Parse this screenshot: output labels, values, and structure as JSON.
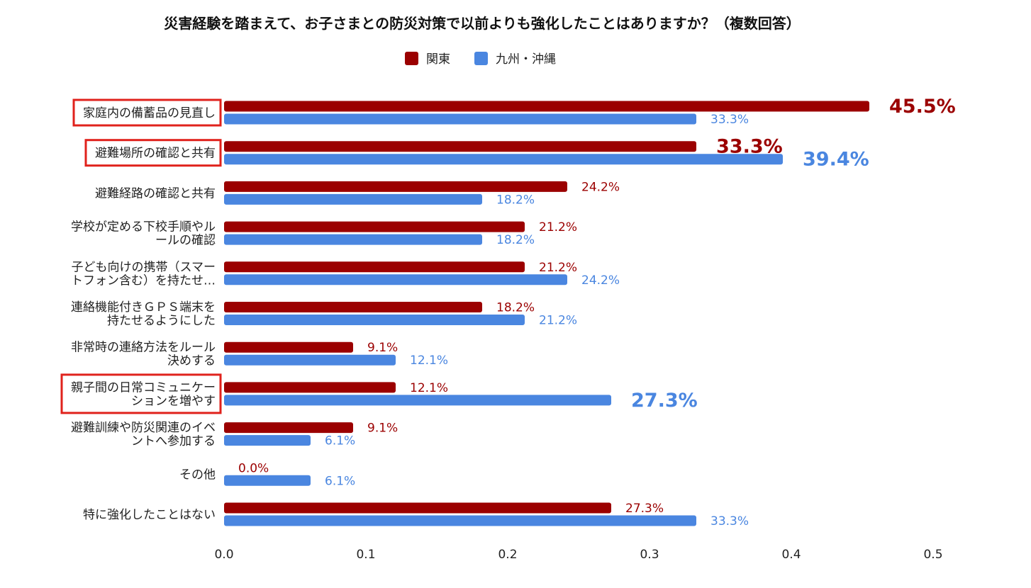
{
  "chart_data": {
    "type": "bar",
    "orientation": "horizontal",
    "title": "災害経験を踏まえて、お子さまとの防災対策で以前よりも強化したことはありますか？（複数回答）",
    "xlabel": "",
    "ylabel": "",
    "xlim": [
      0,
      0.5
    ],
    "x_ticks": [
      "0.0",
      "0.1",
      "0.2",
      "0.3",
      "0.4",
      "0.5"
    ],
    "x_tick_values": [
      0,
      0.1,
      0.2,
      0.3,
      0.4,
      0.5
    ],
    "grid": false,
    "legend_position": "top",
    "categories": [
      [
        "家庭内の備蓄品の見直し"
      ],
      [
        "避難場所の確認と共有"
      ],
      [
        "避難経路の確認と共有"
      ],
      [
        "学校が定める下校手順やル",
        "ールの確認"
      ],
      [
        "子ども向けの携帯（スマー",
        "トフォン含む）を持たせ…"
      ],
      [
        "連絡機能付きＧＰＳ端末を",
        "持たせるようにした"
      ],
      [
        "非常時の連絡方法をルール",
        "決めする"
      ],
      [
        "親子間の日常コミュニケー",
        "ションを増やす"
      ],
      [
        "避難訓練や防災関連のイベ",
        "ントへ参加する"
      ],
      [
        "その他"
      ],
      [
        "特に強化したことはない"
      ]
    ],
    "highlighted_categories": [
      0,
      1,
      7
    ],
    "highlight_color": "#e0221c",
    "series": [
      {
        "name": "関東",
        "color": "#9b0000",
        "values": [
          0.455,
          0.333,
          0.242,
          0.212,
          0.212,
          0.182,
          0.091,
          0.121,
          0.091,
          0.0,
          0.273
        ],
        "labels": [
          "45.5%",
          "33.3%",
          "24.2%",
          "21.2%",
          "21.2%",
          "18.2%",
          "9.1%",
          "12.1%",
          "9.1%",
          "0.0%",
          "27.3%"
        ],
        "emphasized": [
          true,
          true,
          false,
          false,
          false,
          false,
          false,
          false,
          false,
          false,
          false
        ]
      },
      {
        "name": "九州・沖縄",
        "color": "#4a86e0",
        "values": [
          0.333,
          0.394,
          0.182,
          0.182,
          0.242,
          0.212,
          0.121,
          0.273,
          0.061,
          0.061,
          0.333
        ],
        "labels": [
          "33.3%",
          "39.4%",
          "18.2%",
          "18.2%",
          "24.2%",
          "21.2%",
          "12.1%",
          "27.3%",
          "6.1%",
          "6.1%",
          "33.3%"
        ],
        "emphasized": [
          false,
          true,
          false,
          false,
          false,
          false,
          false,
          true,
          false,
          false,
          false
        ]
      }
    ]
  }
}
